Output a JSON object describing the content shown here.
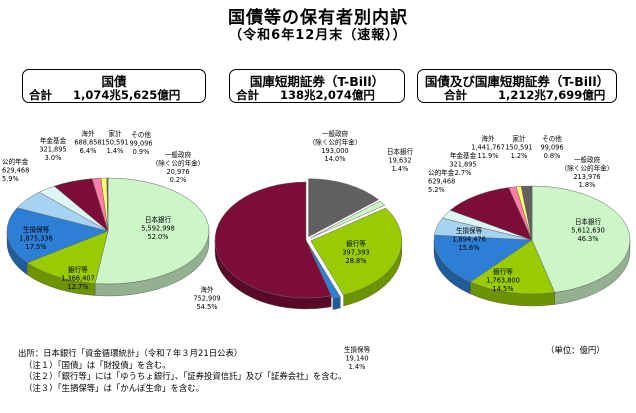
{
  "header": {
    "title": "国債等の保有者別内訳",
    "subtitle": "（令和6年12月末（速報））"
  },
  "boxes": [
    {
      "title": "国債",
      "total_label": "合計",
      "total_value": "1,074兆5,625億円"
    },
    {
      "title": "国庫短期証券（T-Bill）",
      "total_label": "合計",
      "total_value": "138兆2,074億円"
    },
    {
      "title": "国債及び国庫短期証券（T-Bill）",
      "total_label": "合計",
      "total_value": "1,212兆7,699億円"
    }
  ],
  "unit_note": "（単位：億円）",
  "footer": {
    "source": "出所：日本銀行「資金循環統計」（令和７年３月21日公表）",
    "notes": [
      "（注１）「国債」は「財投債」を含む。",
      "（注２）「銀行等」には「ゆうちょ銀行」、「証券投資信託」及び「証券会社」を含む。",
      "（注３）「生損保等」は「かんぽ生命」を含む。"
    ]
  },
  "colors": {
    "bank_of_japan": "#ccf5c8",
    "banks": "#99cc00",
    "insurance": "#2d7fd6",
    "public_pension": "#a6d3f2",
    "pension_fund": "#dcf5f5",
    "overseas": "#7b0d36",
    "households": "#ff7da8",
    "others": "#ffff66",
    "general_government": "#606060"
  },
  "chart_data": [
    {
      "type": "pie",
      "title": "国債",
      "slices": [
        {
          "key": "bank_of_japan",
          "label": [
            "日本銀行"
          ],
          "value": 5592998,
          "value_label": "5,592,998",
          "percent": "52.0%"
        },
        {
          "key": "banks",
          "label": [
            "銀行等"
          ],
          "value": 1366407,
          "value_label": "1,366,407",
          "percent": "12.7%"
        },
        {
          "key": "insurance",
          "label": [
            "生損保等"
          ],
          "value": 1875336,
          "value_label": "1,875,336",
          "percent": "17.5%"
        },
        {
          "key": "public_pension",
          "label": [
            "公的年金"
          ],
          "value": 629468,
          "value_label": "629,468",
          "percent": "5.9%"
        },
        {
          "key": "pension_fund",
          "label": [
            "年金基金"
          ],
          "value": 321895,
          "value_label": "321,895",
          "percent": "3.0%"
        },
        {
          "key": "overseas",
          "label": [
            "海外"
          ],
          "value": 688858,
          "value_label": "688,858",
          "percent": "6.4%"
        },
        {
          "key": "households",
          "label": [
            "家計"
          ],
          "value": 150591,
          "value_label": "150,591",
          "percent": "1.4%"
        },
        {
          "key": "others",
          "label": [
            "その他"
          ],
          "value": 99096,
          "value_label": "99,096",
          "percent": "0.9%"
        },
        {
          "key": "general_government",
          "label": [
            "一般政府",
            "（除く公的年金）"
          ],
          "value": 20976,
          "value_label": "20,976",
          "percent": "0.2%"
        }
      ]
    },
    {
      "type": "pie",
      "title": "国庫短期証券（T-Bill）",
      "slices": [
        {
          "key": "general_government",
          "label": [
            "一般政府",
            "（除く公的年金）"
          ],
          "value": 193000,
          "value_label": "193,000",
          "percent": "14.0%"
        },
        {
          "key": "bank_of_japan",
          "label": [
            "日本銀行"
          ],
          "value": 19632,
          "value_label": "19,632",
          "percent": "1.4%"
        },
        {
          "key": "banks",
          "label": [
            "銀行等"
          ],
          "value": 397393,
          "value_label": "397,393",
          "percent": "28.8%"
        },
        {
          "key": "insurance",
          "label": [
            "生損保等"
          ],
          "value": 19140,
          "value_label": "19,140",
          "percent": "1.4%"
        },
        {
          "key": "overseas",
          "label": [
            "海外"
          ],
          "value": 752909,
          "value_label": "752,909",
          "percent": "54.5%"
        }
      ]
    },
    {
      "type": "pie",
      "title": "国債及び国庫短期証券（T-Bill）",
      "slices": [
        {
          "key": "bank_of_japan",
          "label": [
            "日本銀行"
          ],
          "value": 5612630,
          "value_label": "5,612,630",
          "percent": "46.3%"
        },
        {
          "key": "banks",
          "label": [
            "銀行等"
          ],
          "value": 1763800,
          "value_label": "1,763,800",
          "percent": "14.5%"
        },
        {
          "key": "insurance",
          "label": [
            "生損保等"
          ],
          "value": 1894476,
          "value_label": "1,894,476",
          "percent": "15.6%"
        },
        {
          "key": "public_pension",
          "label": [
            "公的年金"
          ],
          "value": 629468,
          "value_label": "629,468",
          "percent": "5.2%"
        },
        {
          "key": "pension_fund",
          "label": [
            "年金基金"
          ],
          "value": 321895,
          "value_label": "321,895",
          "percent": "2.7%"
        },
        {
          "key": "overseas",
          "label": [
            "海外"
          ],
          "value": 1441767,
          "value_label": "1,441,767",
          "percent": "11.9%"
        },
        {
          "key": "households",
          "label": [
            "家計"
          ],
          "value": 150591,
          "value_label": "150,591",
          "percent": "1.2%"
        },
        {
          "key": "others",
          "label": [
            "その他"
          ],
          "value": 99096,
          "value_label": "99,096",
          "percent": "0.8%"
        },
        {
          "key": "general_government",
          "label": [
            "一般政府",
            "（除く公的年金）"
          ],
          "value": 213976,
          "value_label": "213,976",
          "percent": "1.8%"
        }
      ]
    }
  ]
}
